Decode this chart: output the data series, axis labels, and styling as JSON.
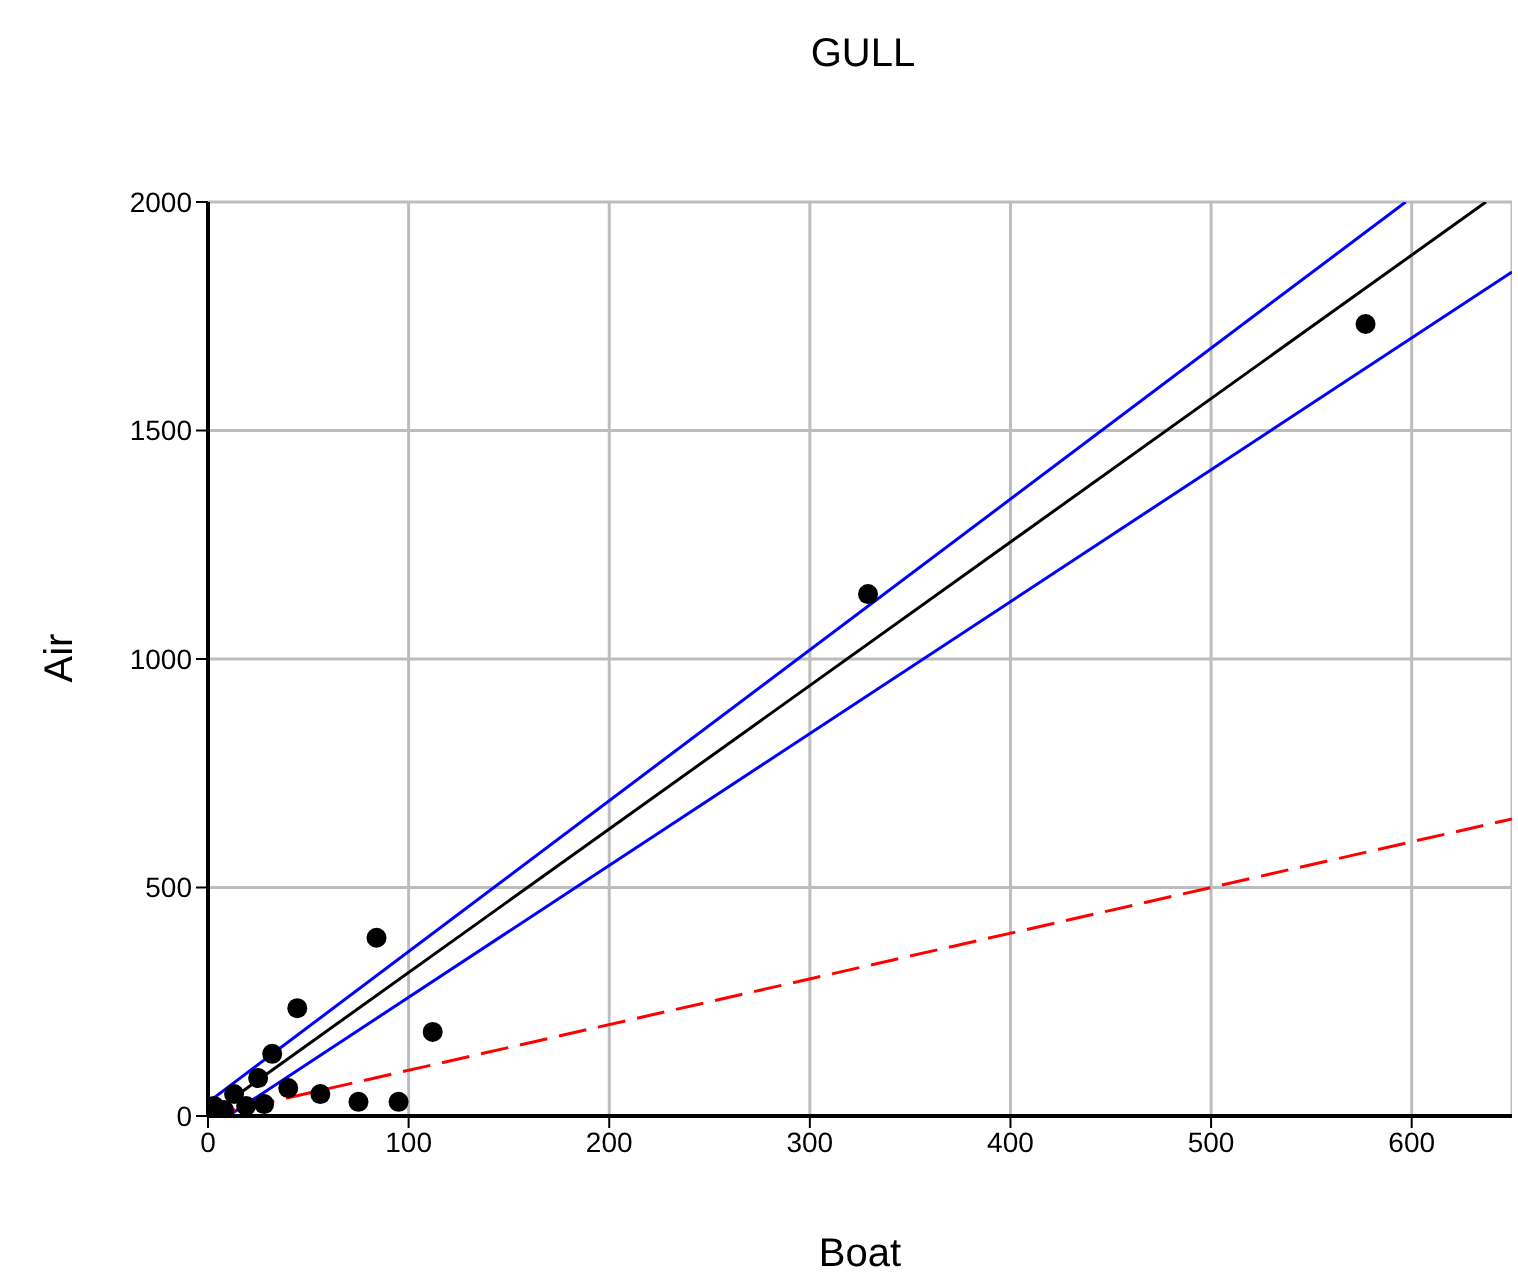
{
  "chart_data": {
    "type": "scatter",
    "title": "GULL",
    "xlabel": "Boat",
    "ylabel": "Air",
    "xlim": [
      0,
      650
    ],
    "ylim": [
      0,
      2000
    ],
    "xticks": [
      0,
      100,
      200,
      300,
      400,
      500,
      600
    ],
    "yticks": [
      0,
      500,
      1000,
      1500,
      2000
    ],
    "grid": true,
    "legend": false,
    "series": [
      {
        "color": "#000000",
        "marker": "circle",
        "x": [
          329,
          577,
          84,
          44.5,
          112,
          32,
          25,
          75,
          95,
          56,
          40,
          13,
          3,
          28,
          8,
          19
        ],
        "values": [
          1142,
          1733,
          390,
          236,
          184,
          136,
          83,
          31,
          31,
          48,
          61,
          48,
          22,
          26,
          13,
          22
        ]
      },
      {
        "type": "line",
        "color": "#000000",
        "marker": "none",
        "line_style": "solid",
        "x": [
          0,
          637
        ],
        "values": [
          0,
          2000
        ]
      },
      {
        "type": "line",
        "color": "#0000ff",
        "marker": "none",
        "line_style": "solid",
        "x": [
          0,
          597
        ],
        "values": [
          30,
          2000
        ]
      },
      {
        "type": "line",
        "color": "#0000ff",
        "marker": "none",
        "line_style": "solid",
        "x": [
          10,
          650
        ],
        "values": [
          0,
          1847
        ]
      },
      {
        "type": "line",
        "color": "#ff0000",
        "marker": "none",
        "line_style": "dashed",
        "x": [
          0,
          650
        ],
        "values": [
          0,
          650
        ]
      }
    ]
  }
}
